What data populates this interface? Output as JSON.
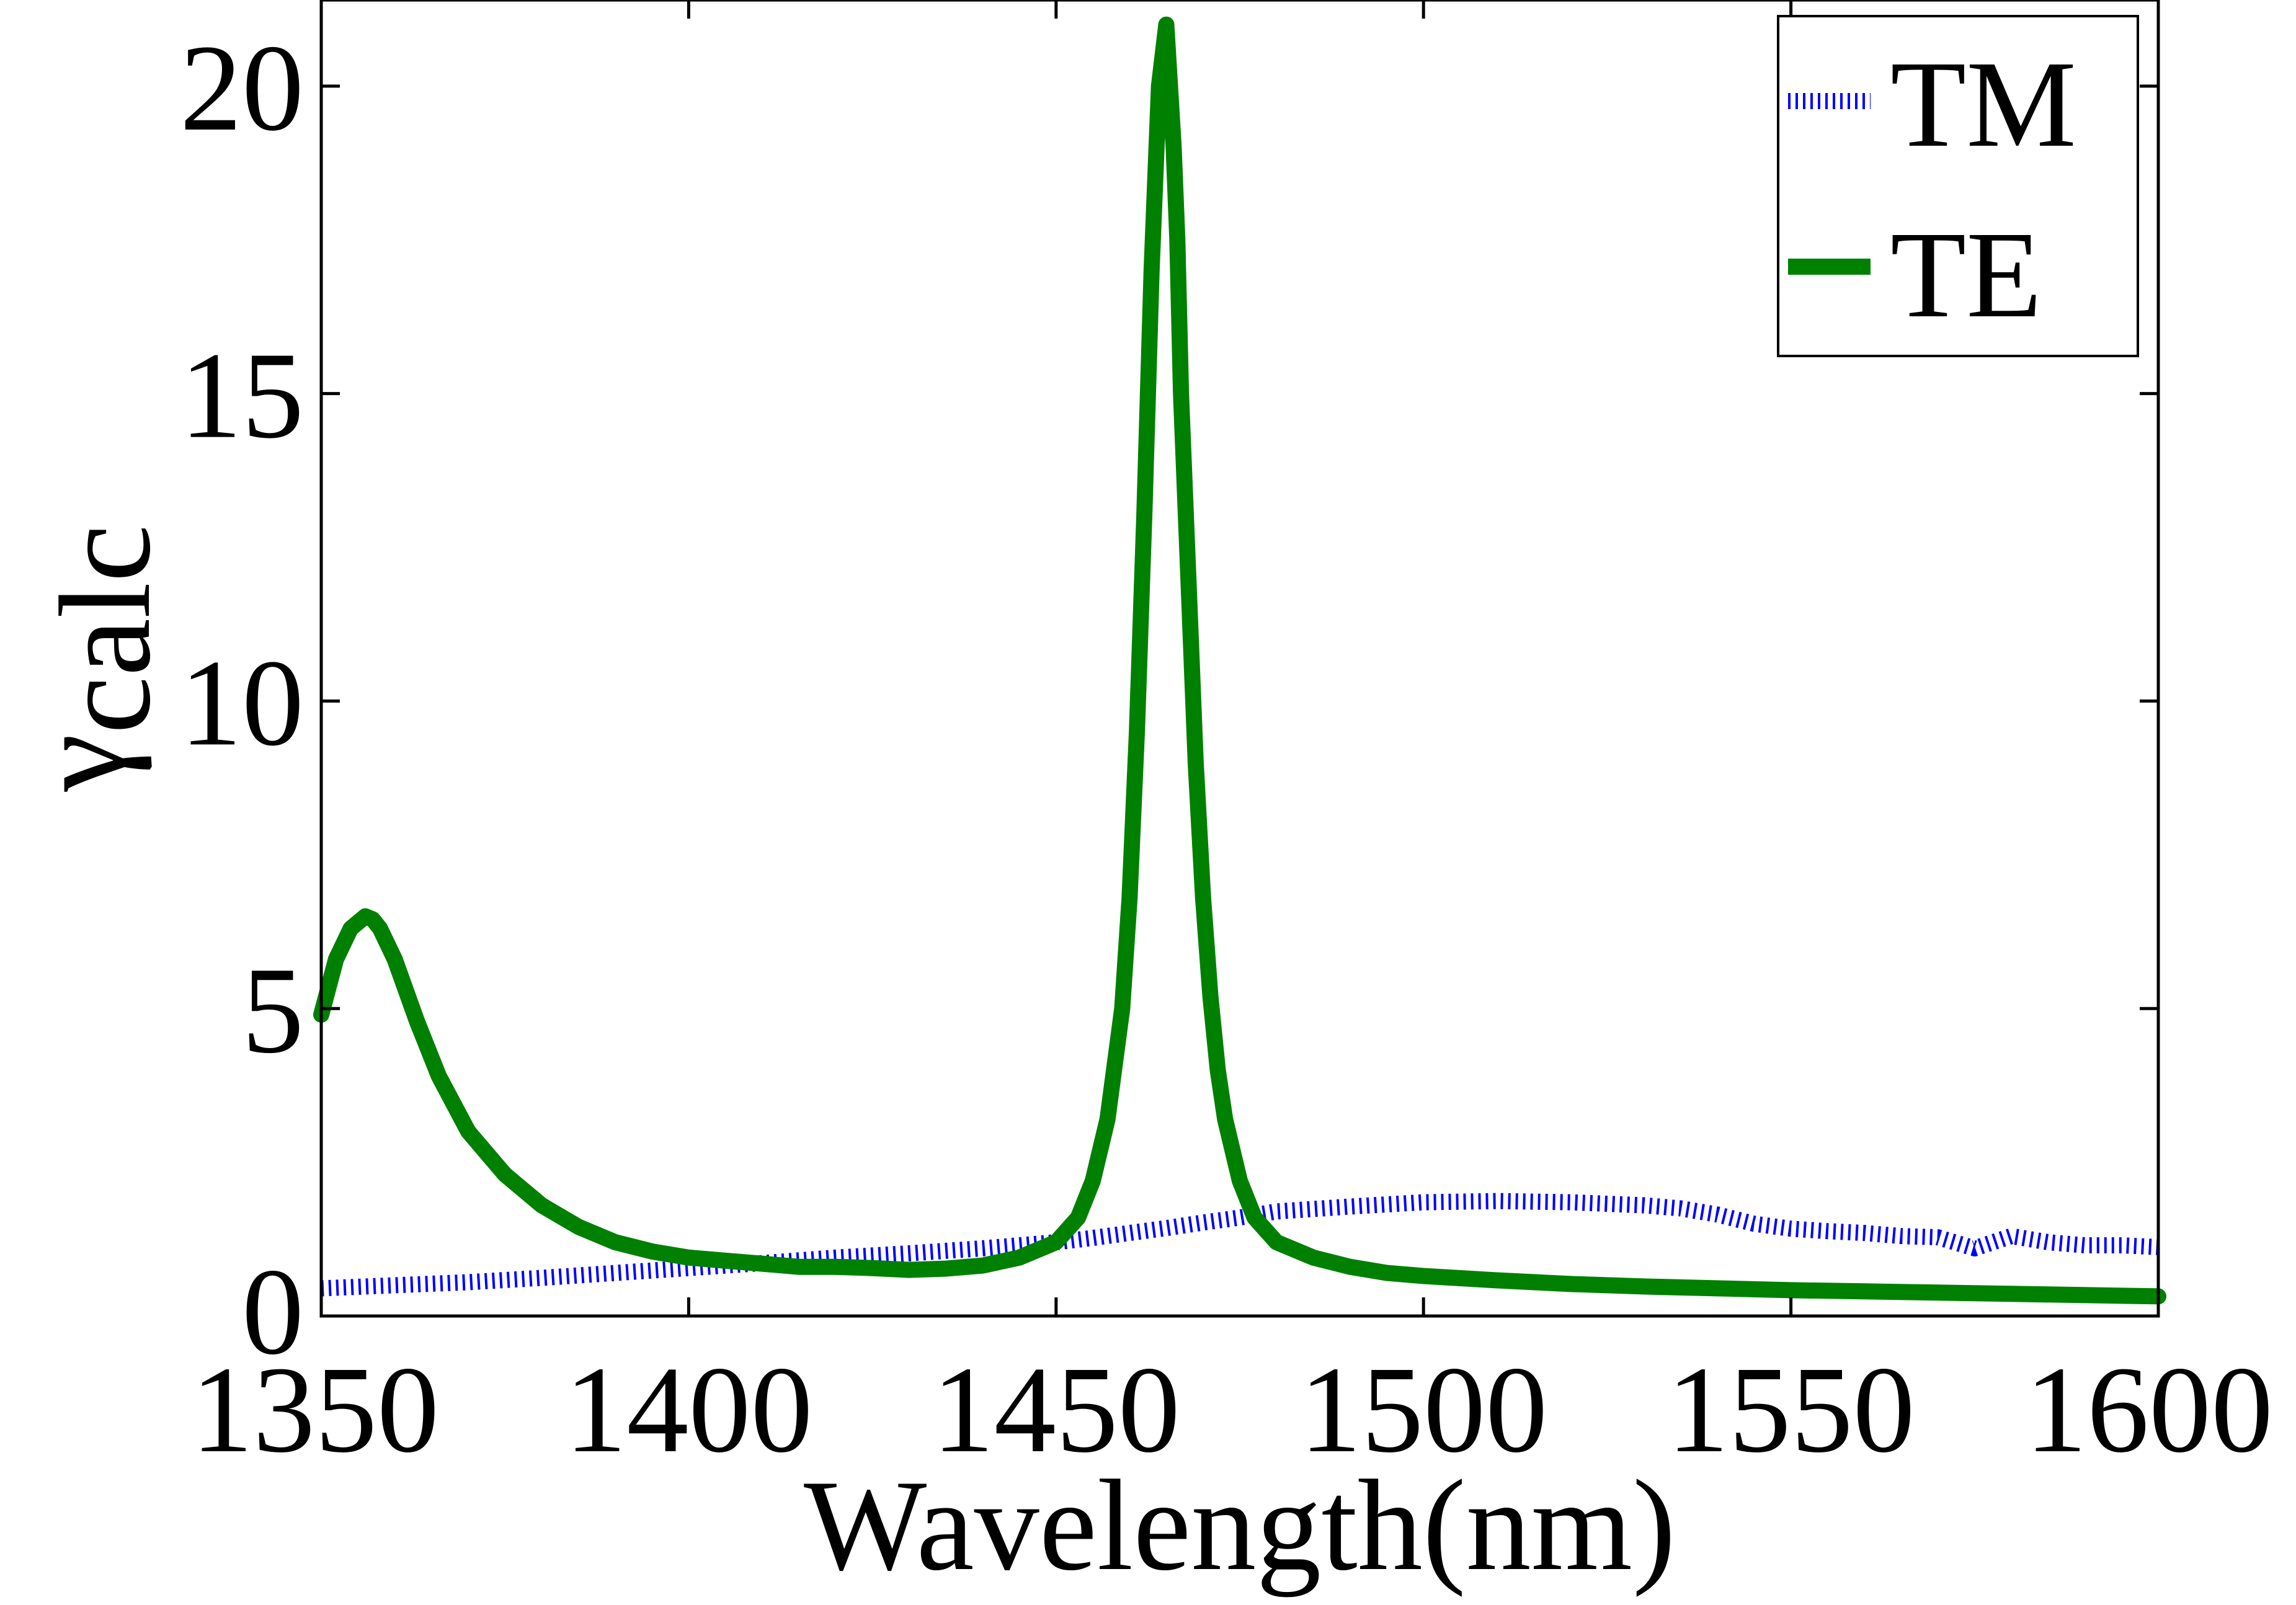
{
  "chart_data": {
    "type": "line",
    "title": "",
    "xlabel": "Wavelength(nm)",
    "ylabel": "γ",
    "ylabel_subscript": "calc",
    "xlim": [
      1350,
      1600
    ],
    "ylim": [
      0,
      21.4
    ],
    "xticks": [
      1350,
      1400,
      1450,
      1500,
      1550,
      1600
    ],
    "yticks": [
      0,
      5,
      10,
      15,
      20
    ],
    "xtick_labels": [
      "1350",
      "1400",
      "1450",
      "1500",
      "1550",
      "1600"
    ],
    "ytick_labels": [
      "0",
      "5",
      "10",
      "15",
      "20"
    ],
    "grid": false,
    "legend_position": "top-right",
    "series": [
      {
        "name": "TM",
        "color": "#0000ff",
        "style": "dotted",
        "x": [
          1350,
          1360,
          1370,
          1380,
          1390,
          1400,
          1410,
          1420,
          1430,
          1440,
          1450,
          1455,
          1460,
          1465,
          1470,
          1475,
          1480,
          1490,
          1500,
          1510,
          1520,
          1530,
          1535,
          1540,
          1545,
          1550,
          1555,
          1560,
          1565,
          1570,
          1575,
          1580,
          1585,
          1590,
          1595,
          1600
        ],
        "y": [
          0.45,
          0.5,
          0.55,
          0.62,
          0.7,
          0.78,
          0.86,
          0.95,
          1.02,
          1.1,
          1.2,
          1.27,
          1.35,
          1.43,
          1.52,
          1.6,
          1.7,
          1.78,
          1.85,
          1.87,
          1.85,
          1.8,
          1.75,
          1.65,
          1.5,
          1.42,
          1.38,
          1.35,
          1.3,
          1.28,
          1.1,
          1.3,
          1.2,
          1.15,
          1.15,
          1.12
        ]
      },
      {
        "name": "TE",
        "color": "#008000",
        "style": "solid",
        "x": [
          1350,
          1352,
          1354,
          1356,
          1357,
          1358,
          1360,
          1363,
          1366,
          1370,
          1375,
          1380,
          1385,
          1390,
          1395,
          1400,
          1405,
          1410,
          1415,
          1420,
          1425,
          1430,
          1435,
          1440,
          1445,
          1450,
          1453,
          1455,
          1457,
          1459,
          1460,
          1461,
          1462,
          1463,
          1464,
          1465,
          1466,
          1466.5,
          1467,
          1468,
          1469,
          1470,
          1471,
          1472,
          1473,
          1475,
          1477,
          1480,
          1485,
          1490,
          1495,
          1500,
          1510,
          1520,
          1530,
          1540,
          1550,
          1560,
          1570,
          1580,
          1590,
          1600
        ],
        "y": [
          4.9,
          5.8,
          6.3,
          6.5,
          6.45,
          6.3,
          5.8,
          4.8,
          3.9,
          3.0,
          2.3,
          1.8,
          1.45,
          1.2,
          1.05,
          0.95,
          0.9,
          0.85,
          0.8,
          0.8,
          0.78,
          0.75,
          0.77,
          0.82,
          0.95,
          1.2,
          1.6,
          2.2,
          3.2,
          5.0,
          6.8,
          9.5,
          13.0,
          17.0,
          20.0,
          21.0,
          19.0,
          17.5,
          15.0,
          12.0,
          9.0,
          6.8,
          5.2,
          4.0,
          3.2,
          2.2,
          1.6,
          1.2,
          0.95,
          0.8,
          0.7,
          0.65,
          0.58,
          0.52,
          0.48,
          0.45,
          0.42,
          0.4,
          0.38,
          0.36,
          0.34,
          0.32
        ]
      }
    ]
  }
}
